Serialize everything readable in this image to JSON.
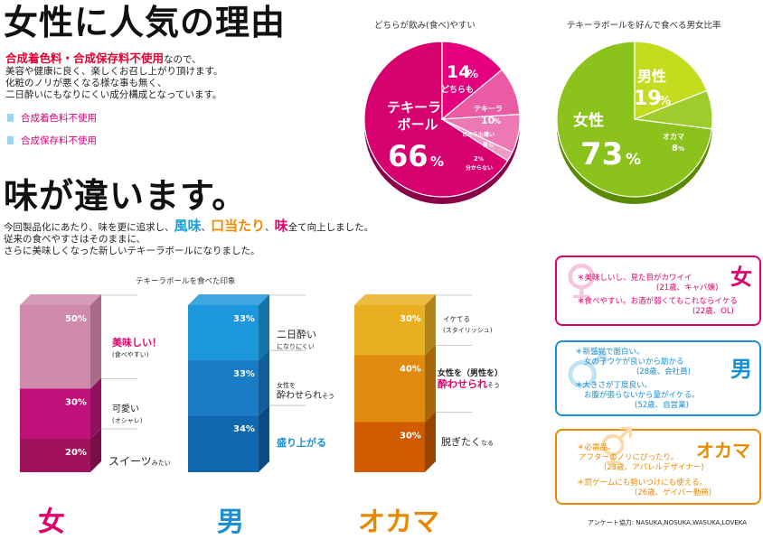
{
  "headline1": "女性に人気の理由",
  "intro": {
    "lead_strong": "合成着色料・合成保存料不使用",
    "lead_rest": "なので、",
    "lines": [
      "美容や健康に良く、楽しくお召し上がり頂けます。",
      "化粧のノリが悪くなる様な事も無く、",
      "二日酔いにもなりにくい成分構成となっています。"
    ],
    "bullets": [
      "合成着色料不使用",
      "合成保存料不使用"
    ]
  },
  "headline2": "味が違います。",
  "intro2": {
    "line1_a": "今回製品化にあたり、味を更に追求し、",
    "kw1": "風味",
    "sep1": "、",
    "kw2": "口当たり",
    "sep2": "、",
    "kw3": "味",
    "line1_b": "全て向上しました。",
    "line2": "従来の食べやすさはそのままに、",
    "line3": "さらに美味しくなった新しいテキーラボールになりました。"
  },
  "colors": {
    "pink": "#d6006f",
    "green": "#8cc21c",
    "blue": "#1a8fd2",
    "orange": "#e88a00",
    "red_label": "#e0006a"
  },
  "chart_data": [
    {
      "type": "pie",
      "title": "どちらが飲み(食べ)やすい",
      "slices": [
        {
          "label": "テキーラボール",
          "value": 66
        },
        {
          "label": "どちらも",
          "value": 14
        },
        {
          "label": "テキーラ",
          "value": 10
        },
        {
          "label": "どちらも嫌い",
          "value": 8
        },
        {
          "label": "分からない",
          "value": 2
        }
      ],
      "display": {
        "main": {
          "l1": "テキーラ",
          "l2": "ボール",
          "pct": "66",
          "unit": "%"
        },
        "s1": {
          "pct": "14",
          "unit": "%",
          "name": "どちらも"
        },
        "s2": {
          "name": "テキーラ",
          "pct": "10",
          "unit": "%"
        },
        "s3": {
          "name": "どちらも嫌い",
          "pct": "8",
          "unit": "%"
        },
        "s4": {
          "pct": "2",
          "unit": "%",
          "name": "分からない"
        }
      }
    },
    {
      "type": "pie",
      "title": "テキーラボールを好んで食べる男女比率",
      "slices": [
        {
          "label": "女性",
          "value": 73
        },
        {
          "label": "男性",
          "value": 19
        },
        {
          "label": "オカマ",
          "value": 8
        }
      ],
      "display": {
        "main": {
          "name": "女性",
          "pct": "73",
          "unit": "%"
        },
        "s1": {
          "name": "男性",
          "pct": "19",
          "unit": "%"
        },
        "s2": {
          "name": "オカマ",
          "pct": "8",
          "unit": "%"
        }
      }
    },
    {
      "type": "bar",
      "stacked": true,
      "title": "テキーラボールを食べた印象",
      "categories": [
        "女",
        "男",
        "オカマ"
      ],
      "stacks": [
        {
          "category": "女",
          "segments": [
            {
              "value": 20,
              "label": "スイーツ",
              "sub": "みたい"
            },
            {
              "value": 30,
              "label": "可愛い",
              "sub": "(オシャレ)"
            },
            {
              "value": 50,
              "label": "美味しい！",
              "sub": "(食べやすい)"
            }
          ]
        },
        {
          "category": "男",
          "segments": [
            {
              "value": 34,
              "label": "盛り上がる",
              "sub": ""
            },
            {
              "value": 33,
              "label_a": "女性を",
              "label": "酔わせられ",
              "sub": "そう"
            },
            {
              "value": 33,
              "label": "二日酔い",
              "sub": "になりにくい"
            }
          ]
        },
        {
          "category": "オカマ",
          "segments": [
            {
              "value": 30,
              "label": "脱ぎたく",
              "sub": "なる"
            },
            {
              "value": 40,
              "label_a": "女性を（男性を）",
              "label": "酔わせられ",
              "sub": "そう"
            },
            {
              "value": 30,
              "label": "イケてる",
              "sub": "(スタイリッシュ)"
            }
          ]
        }
      ],
      "unit": "%"
    }
  ],
  "comments": {
    "women": {
      "title": "女",
      "items": [
        {
          "text": "＊美味しいし、見た目がカワイイ",
          "who": "(21歳、キャバ嬢)"
        },
        {
          "text": "＊食べやすい。お酒が弱くてもこれならイケる",
          "who": "(22歳、OL)"
        }
      ]
    },
    "men": {
      "title": "男",
      "items": [
        {
          "text": "＊新感覚で面白い。",
          "text2": "女の子ウケが良いから助かる",
          "who": "(28歳、会社員)"
        },
        {
          "text": "＊大きさが丁度良い。",
          "text2": "お腹が張らないから量がイケる。",
          "who": "(52歳、自営業)"
        }
      ]
    },
    "okama": {
      "title": "オカマ",
      "items": [
        {
          "text": "＊必需品。",
          "text2": "アフターのノリにぴったり。",
          "who": "(23歳、アパレルデザイナー)"
        },
        {
          "text": "＊罰ゲームにも勢いつけにも使える。",
          "who": "(26歳、ゲイバー勤務)"
        }
      ]
    }
  },
  "credit": "アンケート協力: NASUKA,NOSUKA,WASUKA,LOVEKA"
}
